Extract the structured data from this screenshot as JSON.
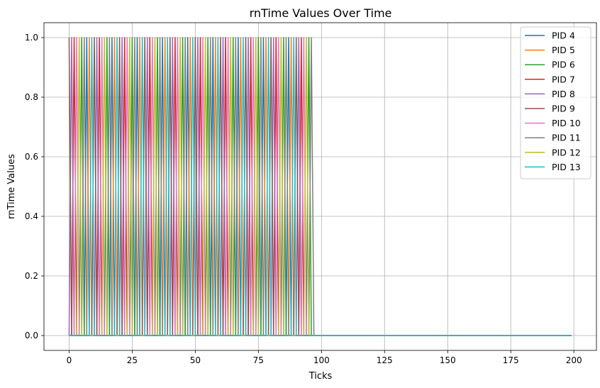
{
  "chart_data": {
    "type": "line",
    "title": "rnTime Values Over Time",
    "xlabel": "Ticks",
    "ylabel": "rnTime Values",
    "xlim": [
      -9.95,
      208.95
    ],
    "ylim": [
      -0.05,
      1.05
    ],
    "xticks": [
      0,
      25,
      50,
      75,
      100,
      125,
      150,
      175,
      200
    ],
    "yticks": [
      0.0,
      0.2,
      0.4,
      0.6,
      0.8,
      1.0
    ],
    "xtick_labels": [
      "0",
      "25",
      "50",
      "75",
      "100",
      "125",
      "150",
      "175",
      "200"
    ],
    "ytick_labels": [
      "0.0",
      "0.2",
      "0.4",
      "0.6",
      "0.8",
      "1.0"
    ],
    "grid": true,
    "legend_position": "top-right",
    "x_range": [
      0,
      199
    ],
    "value_when_active": 1.0,
    "value_when_idle": 0.0,
    "series": [
      {
        "name": "PID 4",
        "color": "#1f77b4",
        "active_ticks": [
          7,
          17,
          27,
          37,
          47,
          57,
          67,
          77,
          87
        ]
      },
      {
        "name": "PID 5",
        "color": "#ff7f0e",
        "active_ticks": [
          8,
          18,
          28,
          38,
          48,
          58,
          68,
          78,
          88
        ]
      },
      {
        "name": "PID 6",
        "color": "#2ca02c",
        "active_ticks": [
          5,
          15,
          25,
          35,
          45,
          55,
          65,
          75,
          85,
          95
        ]
      },
      {
        "name": "PID 7",
        "color": "#d62728",
        "active_ticks": [
          2,
          12,
          22,
          32,
          42,
          52,
          62,
          72,
          82,
          92
        ]
      },
      {
        "name": "PID 8",
        "color": "#9467bd",
        "active_ticks": [
          1,
          11,
          21,
          31,
          41,
          51,
          61,
          71,
          81,
          91
        ]
      },
      {
        "name": "PID 9",
        "color": "#8c564b",
        "active_ticks": [
          0,
          10,
          20,
          30,
          40,
          50,
          60,
          70,
          80,
          90
        ]
      },
      {
        "name": "PID 10",
        "color": "#e377c2",
        "active_ticks": [
          3,
          13,
          23,
          33,
          43,
          53,
          63,
          73,
          83,
          93
        ]
      },
      {
        "name": "PID 11",
        "color": "#7f7f7f",
        "active_ticks": [
          6,
          16,
          26,
          36,
          46,
          56,
          66,
          76,
          86,
          96
        ]
      },
      {
        "name": "PID 12",
        "color": "#bcbd22",
        "active_ticks": [
          4,
          14,
          24,
          34,
          44,
          54,
          64,
          74,
          84,
          94
        ]
      },
      {
        "name": "PID 13",
        "color": "#17becf",
        "active_ticks": [
          9,
          19,
          29,
          39,
          49,
          59,
          69,
          79,
          89
        ]
      }
    ]
  }
}
